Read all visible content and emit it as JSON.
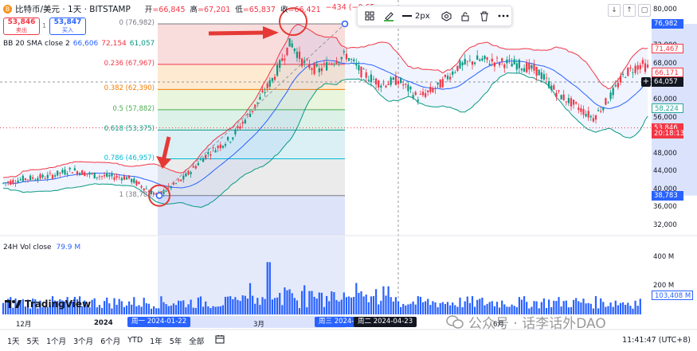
{
  "header": {
    "coin_icon": "B",
    "symbol": "比特币/美元 · 1天 · BITSTAMP",
    "ohlc": [
      {
        "k": "开",
        "v": "=66,845"
      },
      {
        "k": "高",
        "v": "=67,201"
      },
      {
        "k": "低",
        "v": "=65,837"
      },
      {
        "k": "收",
        "v": "=66,421"
      },
      {
        "k": "",
        "v": "−434 (−0.65"
      }
    ]
  },
  "sell_box": {
    "price": "53,846",
    "label": "卖出"
  },
  "spread": "1",
  "buy_box": {
    "price": "53,847",
    "label": "买入"
  },
  "indicator": {
    "name": "BB 20 SMA close 2",
    "mid": "66,606",
    "upper": "72,154",
    "lower": "61,057"
  },
  "drawing_toolbar": {
    "width_label": "2px"
  },
  "price_axis": {
    "ticks": [
      {
        "label": "80,000",
        "v": 80000
      },
      {
        "label": "72,000",
        "v": 72000
      },
      {
        "label": "68,000",
        "v": 68000
      },
      {
        "label": "64,000",
        "v": 64000
      },
      {
        "label": "60,000",
        "v": 60000
      },
      {
        "label": "56,000",
        "v": 56000
      },
      {
        "label": "52,000",
        "v": 52000
      },
      {
        "label": "48,000",
        "v": 48000
      },
      {
        "label": "44,000",
        "v": 44000
      },
      {
        "label": "40,000",
        "v": 40000
      },
      {
        "label": "36,000",
        "v": 36000
      },
      {
        "label": "32,000",
        "v": 32000
      }
    ],
    "tags": [
      {
        "label": "76,982",
        "v": 76982,
        "color": "#2962ff"
      },
      {
        "label": "71,467",
        "v": 71467,
        "color": "#f23645",
        "text": "#f23645",
        "bg": "#ffffff"
      },
      {
        "label": "66,171",
        "v": 66171,
        "color": "#f23645",
        "text": "#f23645",
        "bg": "#ffffff"
      },
      {
        "label": "64,057",
        "v": 64057,
        "color": "#131722"
      },
      {
        "label": "58,224",
        "v": 58224,
        "color": "#26a69a",
        "text": "#26a69a",
        "bg": "#ffffff"
      },
      {
        "label": "53,846",
        "v": 53846,
        "color": "#f23645"
      },
      {
        "label": "20:18:13",
        "v": 52500,
        "color": "#f23645"
      },
      {
        "label": "38,783",
        "v": 38783,
        "color": "#2962ff"
      }
    ]
  },
  "fib_levels": [
    {
      "ratio": "0",
      "label": "0 (76,982)",
      "v": 76982,
      "color": "#787b86",
      "fill": "#f7d3d3"
    },
    {
      "ratio": "0.236",
      "label": "0.236 (67,967)",
      "v": 67967,
      "color": "#f23645",
      "fill": "#fce5c6"
    },
    {
      "ratio": "0.382",
      "label": "0.382 (62,390)",
      "v": 62390,
      "color": "#f57c00",
      "fill": "#e4f2d4"
    },
    {
      "ratio": "0.5",
      "label": "0.5 (57,882)",
      "v": 57882,
      "color": "#4caf50",
      "fill": "#d3efe4"
    },
    {
      "ratio": "0.618",
      "label": "0.618 (53,375)",
      "v": 53375,
      "color": "#089981",
      "fill": "#d1ecf3"
    },
    {
      "ratio": "0.786",
      "label": "0.786 (46,957)",
      "v": 46957,
      "color": "#00bcd4",
      "fill": "#e6e6e6"
    },
    {
      "ratio": "1",
      "label": "1 (38,783)",
      "v": 38783,
      "color": "#787b86",
      "fill": "#d4dcf7"
    }
  ],
  "volume": {
    "label": "24H Vol close",
    "value": "79.9 M",
    "ticks": [
      {
        "label": "400 M",
        "v": 400
      },
      {
        "label": "200 M",
        "v": 200
      }
    ],
    "last_tag": "103,408 M"
  },
  "time_axis": {
    "labels": [
      "12月",
      "2024",
      "3月",
      "6月"
    ],
    "highlights": [
      {
        "label": "周一 2024-01-22",
        "color": "#2962ff"
      },
      {
        "label": "周三 2024-04-0",
        "color": "#2962ff"
      },
      {
        "label": "周二 2024-04-23",
        "color": "#131722"
      }
    ],
    "clock": "11:41:47 (UTC+8)"
  },
  "ranges": [
    "1天",
    "5天",
    "1个月",
    "3个月",
    "6个月",
    "YTD",
    "1年",
    "5年",
    "全部"
  ],
  "brand": "TradingView",
  "watermark": "公众号 · 话李话外DAO",
  "colors": {
    "up": "#089981",
    "down": "#f23645",
    "bb_upper": "#f23645",
    "bb_mid": "#2962ff",
    "bb_lower": "#089981",
    "volume": "#2962ff",
    "annotation": "#e53935"
  }
}
